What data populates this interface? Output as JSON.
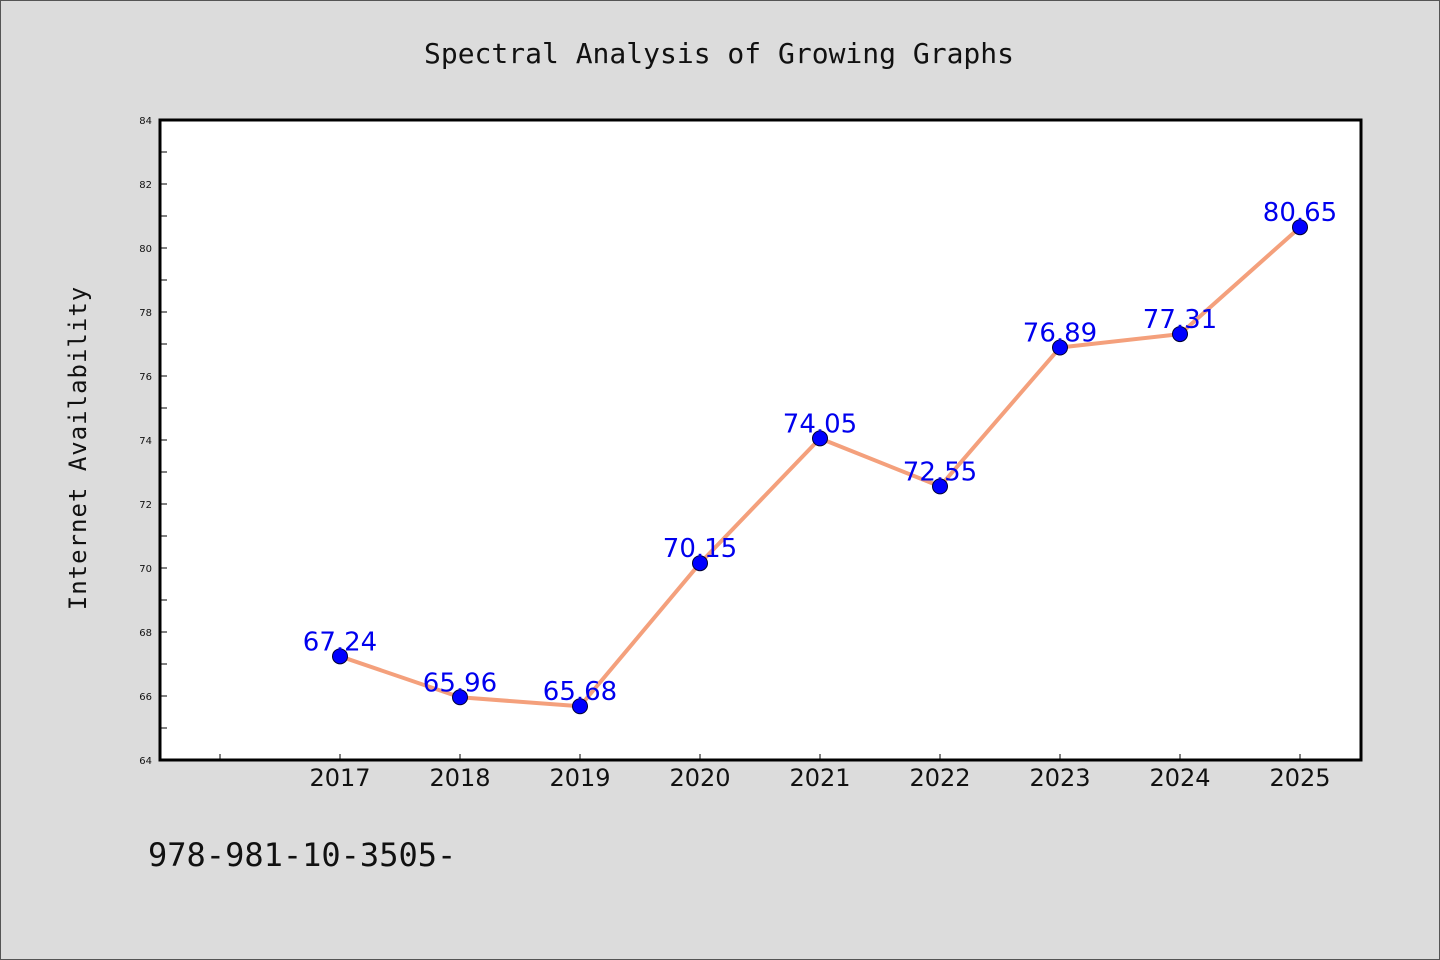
{
  "chart_data": {
    "type": "line",
    "title": "Spectral Analysis of Growing Graphs",
    "ylabel": "Internet Availability",
    "xlabel": "",
    "categories": [
      "2017",
      "2018",
      "2019",
      "2020",
      "2021",
      "2022",
      "2023",
      "2024",
      "2025"
    ],
    "series": [
      {
        "values": [
          67.24,
          65.96,
          65.68,
          70.15,
          74.05,
          72.55,
          76.89,
          77.31,
          80.65
        ],
        "labels": [
          "67.24",
          "65.96",
          "65.68",
          "70.15",
          "74.05",
          "72.55",
          "76.89",
          "77.31",
          "80.65"
        ],
        "line_color": "#f4a07c",
        "marker_color": "#0000ff"
      }
    ],
    "ylim": [
      64,
      84
    ],
    "yticks": [
      "64",
      "66",
      "68",
      "70",
      "72",
      "74",
      "76",
      "78",
      "80",
      "82",
      "84"
    ],
    "label_color": "#0000ee",
    "grid": false,
    "legend": "none"
  },
  "footer": {
    "text": "978-981-10-3505-"
  },
  "colors": {
    "background": "#dcdcdc",
    "plot_background": "#ffffff"
  }
}
